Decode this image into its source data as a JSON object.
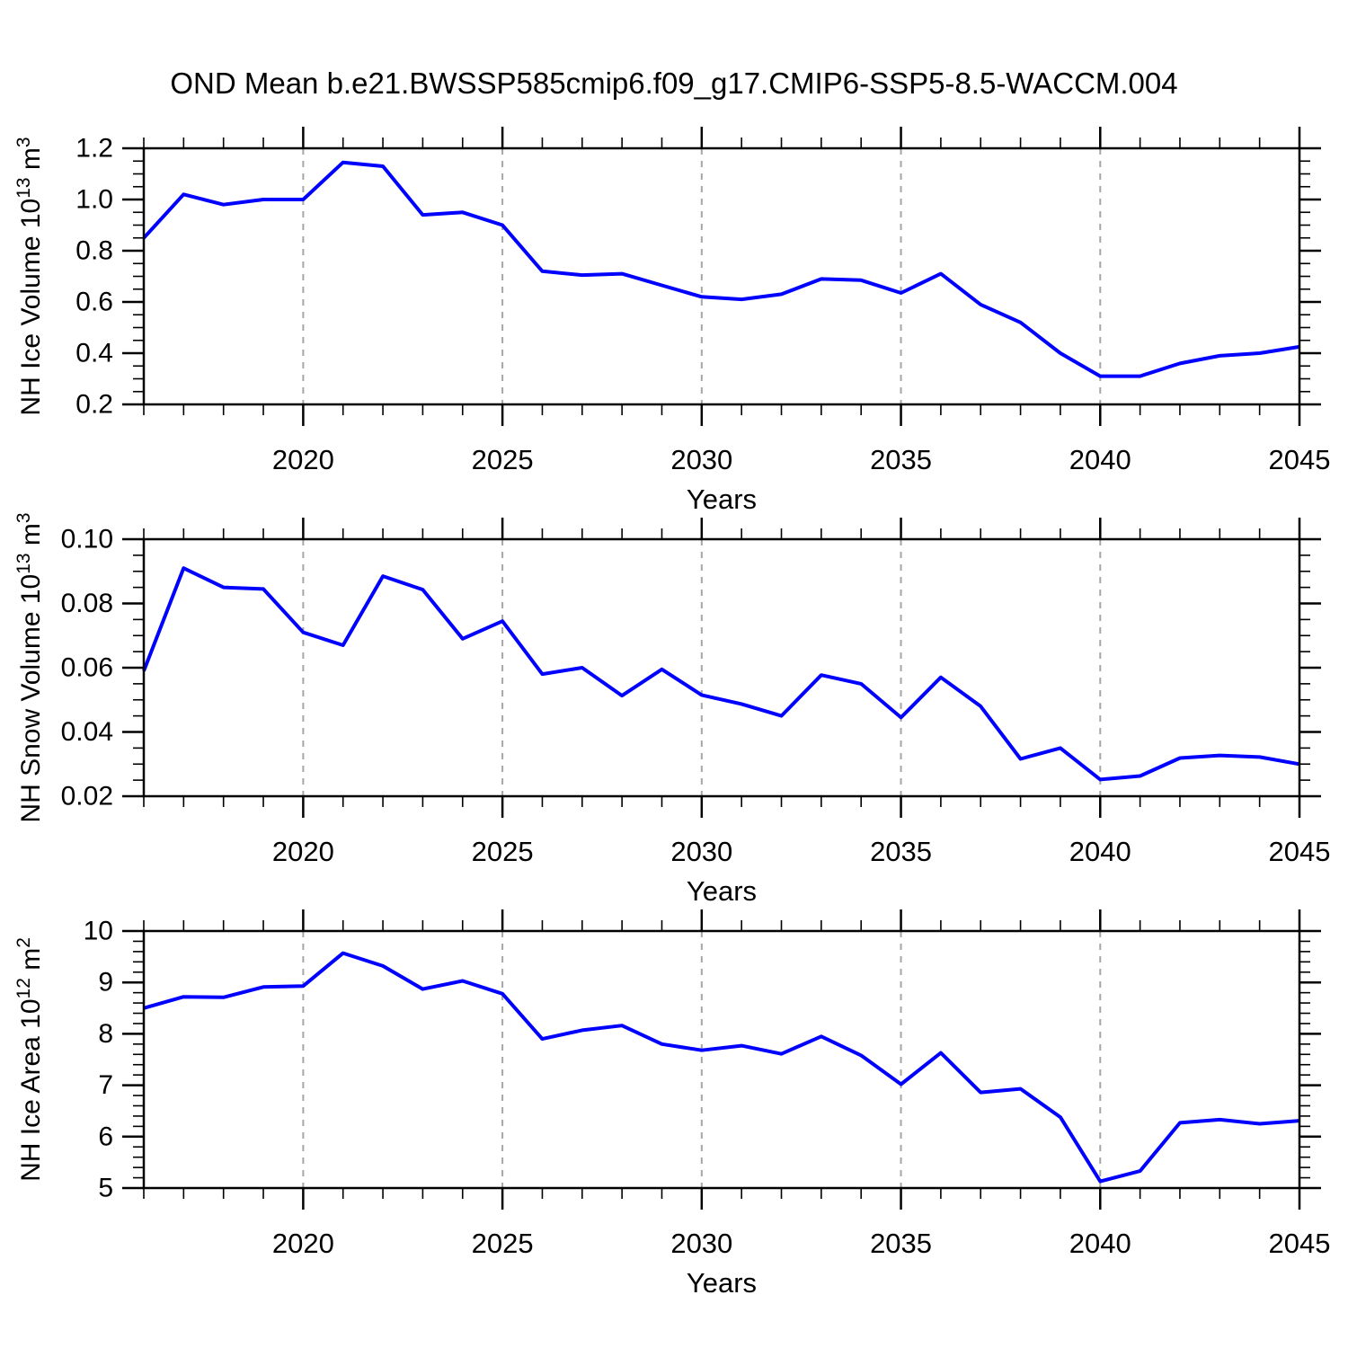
{
  "figure": {
    "title": "OND Mean b.e21.BWSSP585cmip6.f09_g17.CMIP6-SSP5-8.5-WACCM.004"
  },
  "colors": {
    "line": "#0000ff",
    "grid": "#a6a6a6",
    "axis": "#000000",
    "background": "#ffffff"
  },
  "x_axis": {
    "label": "Years",
    "range": [
      2016,
      2045
    ],
    "major_ticks": [
      {
        "v": 2020,
        "label": "2020"
      },
      {
        "v": 2025,
        "label": "2025"
      },
      {
        "v": 2030,
        "label": "2030"
      },
      {
        "v": 2035,
        "label": "2035"
      },
      {
        "v": 2040,
        "label": "2040"
      },
      {
        "v": 2045,
        "label": "2045"
      }
    ],
    "minor_step": 1,
    "grid_years": [
      2020,
      2025,
      2030,
      2035,
      2040
    ]
  },
  "chart_data": [
    {
      "type": "line",
      "name": "nh-ice-volume",
      "ylabel": "NH Ice Volume 10^13 m^3",
      "ylabel_segments": [
        {
          "text": "NH Ice Volume 10",
          "sup": false
        },
        {
          "text": "13",
          "sup": true
        },
        {
          "text": " m",
          "sup": false
        },
        {
          "text": "3",
          "sup": true
        }
      ],
      "xlabel": "Years",
      "ylim": [
        0.2,
        1.2
      ],
      "y_ticks": [
        {
          "v": 0.2,
          "label": "0.2"
        },
        {
          "v": 0.4,
          "label": "0.4"
        },
        {
          "v": 0.6,
          "label": "0.6"
        },
        {
          "v": 0.8,
          "label": "0.8"
        },
        {
          "v": 1.0,
          "label": "1.0"
        },
        {
          "v": 1.2,
          "label": "1.2"
        }
      ],
      "y_minor_step": 0.05,
      "x": [
        2016,
        2017,
        2018,
        2019,
        2020,
        2021,
        2022,
        2023,
        2024,
        2025,
        2026,
        2027,
        2028,
        2029,
        2030,
        2031,
        2032,
        2033,
        2034,
        2035,
        2036,
        2037,
        2038,
        2039,
        2040,
        2041,
        2042,
        2043,
        2044,
        2045
      ],
      "values": [
        0.85,
        1.02,
        0.98,
        1.0,
        1.0,
        1.145,
        1.13,
        0.94,
        0.95,
        0.9,
        0.72,
        0.705,
        0.71,
        0.665,
        0.62,
        0.61,
        0.63,
        0.69,
        0.685,
        0.635,
        0.71,
        0.59,
        0.52,
        0.4,
        0.31,
        0.31,
        0.36,
        0.39,
        0.4,
        0.425
      ],
      "grid": "vertical-dashed",
      "legend": "none"
    },
    {
      "type": "line",
      "name": "nh-snow-volume",
      "ylabel": "NH Snow Volume 10^13 m^3",
      "ylabel_segments": [
        {
          "text": "NH Snow Volume 10",
          "sup": false
        },
        {
          "text": "13",
          "sup": true
        },
        {
          "text": " m",
          "sup": false
        },
        {
          "text": "3",
          "sup": true
        }
      ],
      "xlabel": "Years",
      "ylim": [
        0.02,
        0.1
      ],
      "y_ticks": [
        {
          "v": 0.02,
          "label": "0.02"
        },
        {
          "v": 0.04,
          "label": "0.04"
        },
        {
          "v": 0.06,
          "label": "0.06"
        },
        {
          "v": 0.08,
          "label": "0.08"
        },
        {
          "v": 0.1,
          "label": "0.10"
        }
      ],
      "y_minor_step": 0.005,
      "x": [
        2016,
        2017,
        2018,
        2019,
        2020,
        2021,
        2022,
        2023,
        2024,
        2025,
        2026,
        2027,
        2028,
        2029,
        2030,
        2031,
        2032,
        2033,
        2034,
        2035,
        2036,
        2037,
        2038,
        2039,
        2040,
        2041,
        2042,
        2043,
        2044,
        2045
      ],
      "values": [
        0.059,
        0.091,
        0.085,
        0.0845,
        0.071,
        0.067,
        0.0885,
        0.0843,
        0.069,
        0.0745,
        0.058,
        0.06,
        0.0513,
        0.0595,
        0.0515,
        0.0487,
        0.045,
        0.0577,
        0.055,
        0.0445,
        0.057,
        0.048,
        0.0316,
        0.035,
        0.0252,
        0.0263,
        0.0319,
        0.0327,
        0.0322,
        0.03
      ],
      "grid": "vertical-dashed",
      "legend": "none"
    },
    {
      "type": "line",
      "name": "nh-ice-area",
      "ylabel": "NH Ice Area 10^12 m^2",
      "ylabel_segments": [
        {
          "text": "NH Ice Area 10",
          "sup": false
        },
        {
          "text": "12",
          "sup": true
        },
        {
          "text": " m",
          "sup": false
        },
        {
          "text": "2",
          "sup": true
        }
      ],
      "xlabel": "Years",
      "ylim": [
        5,
        10
      ],
      "y_ticks": [
        {
          "v": 5,
          "label": "5"
        },
        {
          "v": 6,
          "label": "6"
        },
        {
          "v": 7,
          "label": "7"
        },
        {
          "v": 8,
          "label": "8"
        },
        {
          "v": 9,
          "label": "9"
        },
        {
          "v": 10,
          "label": "10"
        }
      ],
      "y_minor_step": 0.2,
      "x": [
        2016,
        2017,
        2018,
        2019,
        2020,
        2021,
        2022,
        2023,
        2024,
        2025,
        2026,
        2027,
        2028,
        2029,
        2030,
        2031,
        2032,
        2033,
        2034,
        2035,
        2036,
        2037,
        2038,
        2039,
        2040,
        2041,
        2042,
        2043,
        2044,
        2045
      ],
      "values": [
        8.5,
        8.72,
        8.71,
        8.91,
        8.93,
        9.57,
        9.32,
        8.87,
        9.03,
        8.78,
        7.9,
        8.07,
        8.16,
        7.8,
        7.68,
        7.77,
        7.61,
        7.95,
        7.58,
        7.02,
        7.63,
        6.86,
        6.93,
        6.38,
        5.13,
        5.33,
        6.27,
        6.33,
        6.25,
        6.31
      ],
      "grid": "vertical-dashed",
      "legend": "none"
    }
  ]
}
